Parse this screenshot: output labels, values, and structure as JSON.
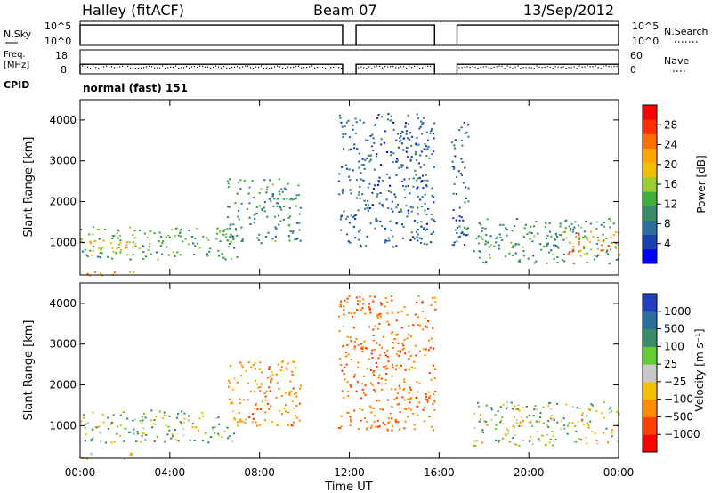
{
  "header": {
    "station": "Halley (fitACF)",
    "beam": "Beam 07",
    "date": "13/Sep/2012"
  },
  "panels": {
    "nsky": {
      "left_label": "N.Sky",
      "right_label": "N.Search",
      "ticks_left": [
        "10^5",
        "10^0"
      ],
      "ticks_right": [
        "10^5",
        "10^0"
      ]
    },
    "freq": {
      "left_label_1": "Freq.",
      "left_label_2": "[MHz]",
      "right_label": "Nave",
      "ticks_left": [
        "18",
        "8"
      ],
      "ticks_right": [
        "60",
        "0"
      ]
    },
    "cpid": {
      "label": "CPID",
      "value": "normal (fast) 151"
    }
  },
  "colorbars": {
    "power": {
      "title": "Power [dB]",
      "ticks": [
        "28",
        "24",
        "20",
        "16",
        "12",
        "8",
        "4"
      ],
      "colors": [
        "#0000ff",
        "#1a3fb0",
        "#2e6e9e",
        "#3c8a6a",
        "#3fae3f",
        "#9acd32",
        "#f0c000",
        "#ffa500",
        "#ff7000",
        "#ff3000",
        "#ff0000"
      ]
    },
    "velocity": {
      "title": "Velocity [m s⁻¹]",
      "ticks": [
        "1000",
        "500",
        "100",
        "25",
        "−25",
        "−100",
        "−500",
        "−1000"
      ],
      "colors": [
        "#2040c0",
        "#2e6e9e",
        "#3c8a6a",
        "#66cc33",
        "#c8c8c8",
        "#f0c000",
        "#ff8c00",
        "#ff4000",
        "#ff0000"
      ]
    }
  },
  "chart_data": [
    {
      "type": "heatmap",
      "title": "Power",
      "ylabel": "Slant Range [km]",
      "ylim": [
        200,
        4500
      ],
      "yticks": [
        1000,
        2000,
        3000,
        4000
      ],
      "xlim": [
        0,
        24
      ],
      "xticks": [
        0,
        4,
        8,
        12,
        16,
        20,
        24
      ],
      "colorbar": "Power [dB]",
      "colorbar_range": [
        0,
        32
      ],
      "echo_regions": [
        {
          "t0": 0.0,
          "t1": 7.0,
          "r0": 600,
          "r1": 1400,
          "value": 12
        },
        {
          "t0": 0.0,
          "t1": 2.5,
          "r0": 700,
          "r1": 1100,
          "value": 20
        },
        {
          "t0": 0.0,
          "t1": 2.5,
          "r0": 200,
          "r1": 350,
          "value": 24
        },
        {
          "t0": 6.5,
          "t1": 9.8,
          "r0": 1000,
          "r1": 2600,
          "value": 10
        },
        {
          "t0": 11.5,
          "t1": 15.8,
          "r0": 900,
          "r1": 4200,
          "value": 6
        },
        {
          "t0": 16.5,
          "t1": 17.3,
          "r0": 900,
          "r1": 4000,
          "value": 6
        },
        {
          "t0": 17.5,
          "t1": 24.0,
          "r0": 500,
          "r1": 1600,
          "value": 10
        },
        {
          "t0": 21.5,
          "t1": 24.0,
          "r0": 700,
          "r1": 1300,
          "value": 24
        }
      ]
    },
    {
      "type": "heatmap",
      "title": "Velocity",
      "ylabel": "Slant Range [km]",
      "ylim": [
        200,
        4500
      ],
      "yticks": [
        1000,
        2000,
        3000,
        4000
      ],
      "xlim": [
        0,
        24
      ],
      "xticks": [
        0,
        4,
        8,
        12,
        16,
        20,
        24
      ],
      "xlabel": "Time UT",
      "xticklabels": [
        "00:00",
        "04:00",
        "08:00",
        "12:00",
        "16:00",
        "20:00",
        "00:00"
      ],
      "colorbar": "Velocity [m s⁻¹]",
      "echo_regions": [
        {
          "t0": 0.0,
          "t1": 7.0,
          "r0": 600,
          "r1": 1400,
          "value": 50
        },
        {
          "t0": 0.0,
          "t1": 2.5,
          "r0": 200,
          "r1": 350,
          "value": -150
        },
        {
          "t0": 6.5,
          "t1": 9.8,
          "r0": 1000,
          "r1": 2600,
          "value": -200
        },
        {
          "t0": 11.5,
          "t1": 15.8,
          "r0": 900,
          "r1": 4200,
          "value": -300
        },
        {
          "t0": 17.5,
          "t1": 24.0,
          "r0": 500,
          "r1": 1600,
          "value": 0
        }
      ]
    },
    {
      "type": "line",
      "title": "N.Sky / N.Search",
      "xlim": [
        0,
        24
      ],
      "gaps": [
        [
          11.7,
          12.3
        ],
        [
          15.8,
          16.8
        ]
      ],
      "level_fraction": 0.85
    },
    {
      "type": "scatter",
      "title": "Freq / Nave",
      "xlim": [
        0,
        24
      ],
      "gaps": [
        [
          11.7,
          12.3
        ],
        [
          15.8,
          16.8
        ]
      ],
      "level_fraction": 0.4
    }
  ]
}
